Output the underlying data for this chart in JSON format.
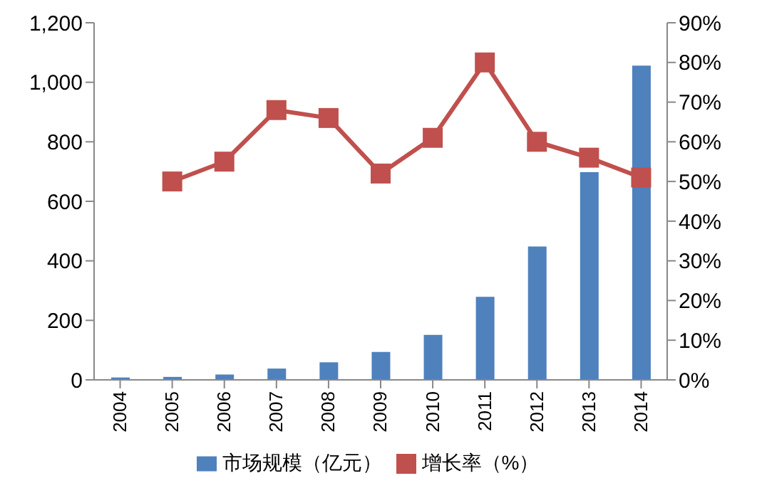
{
  "chart_data": {
    "type": "bar",
    "categories": [
      "2004",
      "2005",
      "2006",
      "2007",
      "2008",
      "2009",
      "2010",
      "2011",
      "2012",
      "2013",
      "2014"
    ],
    "series": [
      {
        "name": "市场规模（亿元）",
        "color": "#4f81bd",
        "values": [
          8,
          10,
          18,
          38,
          59,
          94,
          151,
          279,
          448,
          698,
          1056
        ]
      },
      {
        "name": "增长率（%）",
        "type": "line",
        "axis": "y2",
        "color": "#c0504d",
        "marker": "square",
        "values": [
          null,
          50,
          55,
          68,
          66,
          52,
          61,
          80,
          60,
          56,
          51
        ]
      }
    ],
    "ylim": [
      0,
      1200
    ],
    "yticks": [
      0,
      200,
      400,
      600,
      800,
      {
        "value": 1000,
        "label": "1,000"
      },
      {
        "value": 1200,
        "label": "1,200"
      }
    ],
    "y2lim": [
      0,
      90
    ],
    "y2ticks": [
      {
        "value": 0,
        "label": "0%"
      },
      {
        "value": 10,
        "label": "10%"
      },
      {
        "value": 20,
        "label": "20%"
      },
      {
        "value": 30,
        "label": "30%"
      },
      {
        "value": 40,
        "label": "40%"
      },
      {
        "value": 50,
        "label": "50%"
      },
      {
        "value": 60,
        "label": "60%"
      },
      {
        "value": 70,
        "label": "70%"
      },
      {
        "value": 80,
        "label": "80%"
      },
      {
        "value": 90,
        "label": "90%"
      }
    ],
    "grid": false,
    "legend": "bottom"
  }
}
